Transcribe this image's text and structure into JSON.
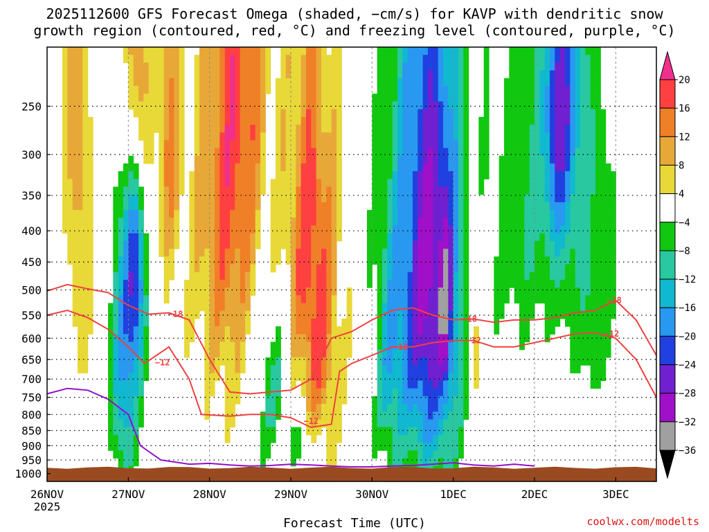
{
  "chart_data": {
    "type": "heatmap",
    "title_lines": [
      "2025112600 GFS Forecast Omega (shaded, −cm/s) for KAVP with dendritic snow",
      "growth region (contoured, red, °C) and freezing level (contoured, purple, °C)"
    ],
    "xlabel": "Forecast Time (UTC)",
    "ylabel": "",
    "credit": "coolwx.com/modelts",
    "x_ticks": [
      "26NOV",
      "27NOV",
      "28NOV",
      "29NOV",
      "30NOV",
      "1DEC",
      "2DEC",
      "3DEC"
    ],
    "x_year_label": "2025",
    "x_range_days": [
      0,
      7.5
    ],
    "y_ticks": [
      250,
      300,
      350,
      400,
      450,
      500,
      550,
      600,
      650,
      700,
      750,
      800,
      850,
      900,
      950,
      1000
    ],
    "y_range_hpa": [
      200,
      1030
    ],
    "colorbar": {
      "labels": [
        "20",
        "16",
        "12",
        "8",
        "4",
        "−4",
        "−8",
        "−12",
        "−16",
        "−20",
        "−24",
        "−28",
        "−32",
        "−36"
      ],
      "colors": [
        "#f0308c",
        "#ff4040",
        "#f08028",
        "#e8a838",
        "#e8d838",
        "#ffffff",
        "#10c810",
        "#28c8a0",
        "#10b8d0",
        "#2898f0",
        "#2040e0",
        "#7020d0",
        "#a010c8",
        "#a0a0a0",
        "#000000"
      ]
    },
    "series": [
      {
        "name": "-18 °C isotherm",
        "color": "#f04040",
        "points": [
          [
            0,
            502
          ],
          [
            0.25,
            490
          ],
          [
            0.5,
            498
          ],
          [
            0.75,
            505
          ],
          [
            1.0,
            530
          ],
          [
            1.25,
            548
          ],
          [
            1.5,
            545
          ],
          [
            1.75,
            560
          ],
          [
            2.0,
            650
          ],
          [
            2.25,
            735
          ],
          [
            2.5,
            740
          ],
          [
            2.75,
            735
          ],
          [
            3.0,
            730
          ],
          [
            3.25,
            700
          ],
          [
            3.5,
            600
          ],
          [
            3.75,
            585
          ],
          [
            4.0,
            560
          ],
          [
            4.25,
            540
          ],
          [
            4.5,
            535
          ],
          [
            4.75,
            550
          ],
          [
            5.0,
            560
          ],
          [
            5.25,
            558
          ],
          [
            5.5,
            565
          ],
          [
            5.75,
            560
          ],
          [
            6.0,
            560
          ],
          [
            6.25,
            555
          ],
          [
            6.5,
            545
          ],
          [
            6.75,
            540
          ],
          [
            7.0,
            520
          ],
          [
            7.25,
            560
          ],
          [
            7.5,
            640
          ]
        ],
        "label": "−18"
      },
      {
        "name": "-12 °C isotherm",
        "color": "#f04040",
        "points": [
          [
            0,
            550
          ],
          [
            0.25,
            540
          ],
          [
            0.5,
            555
          ],
          [
            0.75,
            580
          ],
          [
            1.0,
            620
          ],
          [
            1.2,
            660
          ],
          [
            1.5,
            620
          ],
          [
            1.75,
            700
          ],
          [
            1.9,
            800
          ],
          [
            2.25,
            805
          ],
          [
            2.5,
            800
          ],
          [
            2.75,
            800
          ],
          [
            3.0,
            810
          ],
          [
            3.25,
            840
          ],
          [
            3.5,
            830
          ],
          [
            3.6,
            680
          ],
          [
            3.75,
            660
          ],
          [
            4.0,
            640
          ],
          [
            4.25,
            620
          ],
          [
            4.5,
            620
          ],
          [
            4.75,
            610
          ],
          [
            5.0,
            605
          ],
          [
            5.25,
            605
          ],
          [
            5.5,
            620
          ],
          [
            5.75,
            620
          ],
          [
            6.0,
            610
          ],
          [
            6.25,
            600
          ],
          [
            6.5,
            590
          ],
          [
            6.75,
            588
          ],
          [
            7.0,
            600
          ],
          [
            7.25,
            650
          ],
          [
            7.5,
            750
          ]
        ],
        "label": "−12"
      },
      {
        "name": "freezing level",
        "color": "#9010c8",
        "points": [
          [
            0,
            740
          ],
          [
            0.25,
            725
          ],
          [
            0.5,
            730
          ],
          [
            0.75,
            755
          ],
          [
            1.0,
            800
          ],
          [
            1.15,
            900
          ],
          [
            1.4,
            950
          ],
          [
            1.75,
            965
          ],
          [
            2.0,
            962
          ],
          [
            2.25,
            968
          ],
          [
            2.5,
            972
          ],
          [
            2.75,
            970
          ],
          [
            3.0,
            965
          ],
          [
            3.25,
            968
          ],
          [
            3.5,
            972
          ],
          [
            3.75,
            975
          ],
          [
            4.0,
            975
          ],
          [
            4.25,
            972
          ],
          [
            4.5,
            970
          ],
          [
            4.75,
            965
          ],
          [
            5.0,
            960
          ],
          [
            5.25,
            968
          ],
          [
            5.5,
            972
          ],
          [
            5.75,
            965
          ],
          [
            6.0,
            972
          ]
        ],
        "label": ""
      }
    ]
  }
}
